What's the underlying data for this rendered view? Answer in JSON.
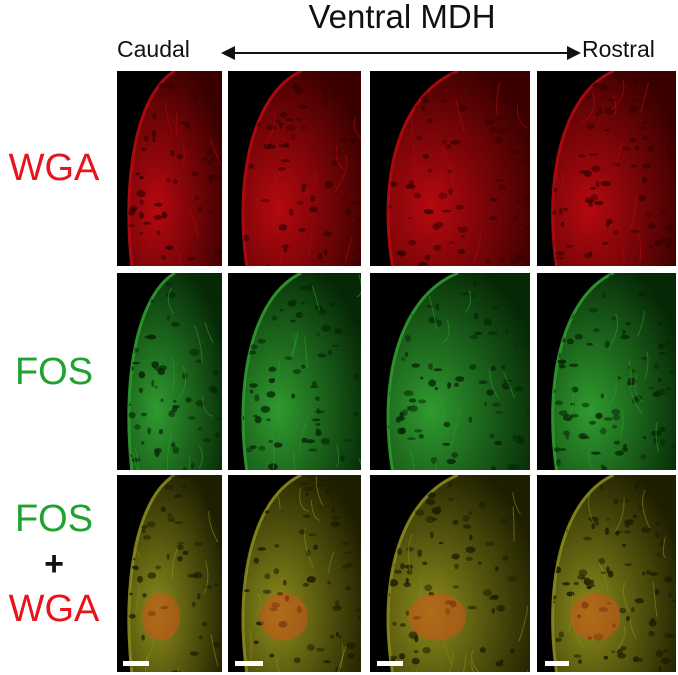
{
  "header": {
    "title": "Ventral MDH",
    "caudal_label": "Caudal",
    "rostral_label": "Rostral"
  },
  "rows": {
    "wga": {
      "label": "WGA",
      "color": "#e8141b"
    },
    "fos": {
      "label": "FOS",
      "color": "#1fa32e"
    },
    "merge": {
      "label_top": "FOS",
      "label_plus": "+",
      "label_bottom": "WGA"
    }
  },
  "colors": {
    "wga_fill": "#b5090f",
    "wga_dark": "#3a0000",
    "fos_fill": "#2f9a2f",
    "fos_dark": "#062806",
    "merge_fill": "#8a8a1c",
    "merge_dark": "#1e1e00",
    "merge_hot": "#d2521a"
  }
}
